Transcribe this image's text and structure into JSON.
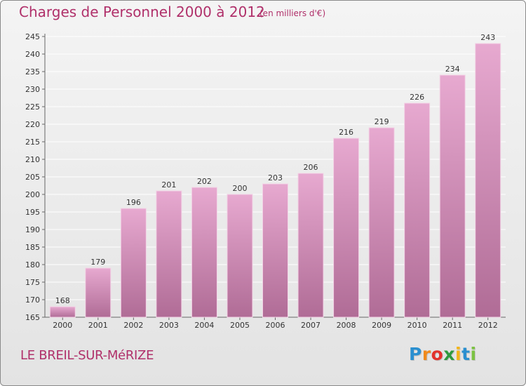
{
  "title": "Charges de Personnel 2000 à 2012",
  "subtitle": "(en milliers d'€)",
  "commune": "LE BREIL-SUR-MéRIZE",
  "logo": {
    "letters": [
      "P",
      "r",
      "o",
      "x",
      "i",
      "t",
      "i"
    ],
    "colors": [
      "#2a8fd0",
      "#f08a1c",
      "#e2322a",
      "#2e9a3e",
      "#f2b51a",
      "#2a8fd0",
      "#7cc242"
    ]
  },
  "colors": {
    "bar_top": "#e7a9d0",
    "bar_bottom": "#b06c96",
    "text": "#b0306a",
    "grid": "#ffffff"
  },
  "chart_data": {
    "type": "bar",
    "title": "Charges de Personnel 2000 à 2012",
    "subtitle": "(en milliers d'€)",
    "categories": [
      "2000",
      "2001",
      "2002",
      "2003",
      "2004",
      "2005",
      "2006",
      "2007",
      "2008",
      "2009",
      "2010",
      "2011",
      "2012"
    ],
    "values": [
      168,
      179,
      196,
      201,
      202,
      200,
      203,
      206,
      216,
      219,
      226,
      234,
      243
    ],
    "ylim": [
      165,
      245
    ],
    "yticks": [
      165,
      170,
      175,
      180,
      185,
      190,
      195,
      200,
      205,
      210,
      215,
      220,
      225,
      230,
      235,
      240,
      245
    ],
    "grid": true,
    "xlabel": "",
    "ylabel": ""
  }
}
